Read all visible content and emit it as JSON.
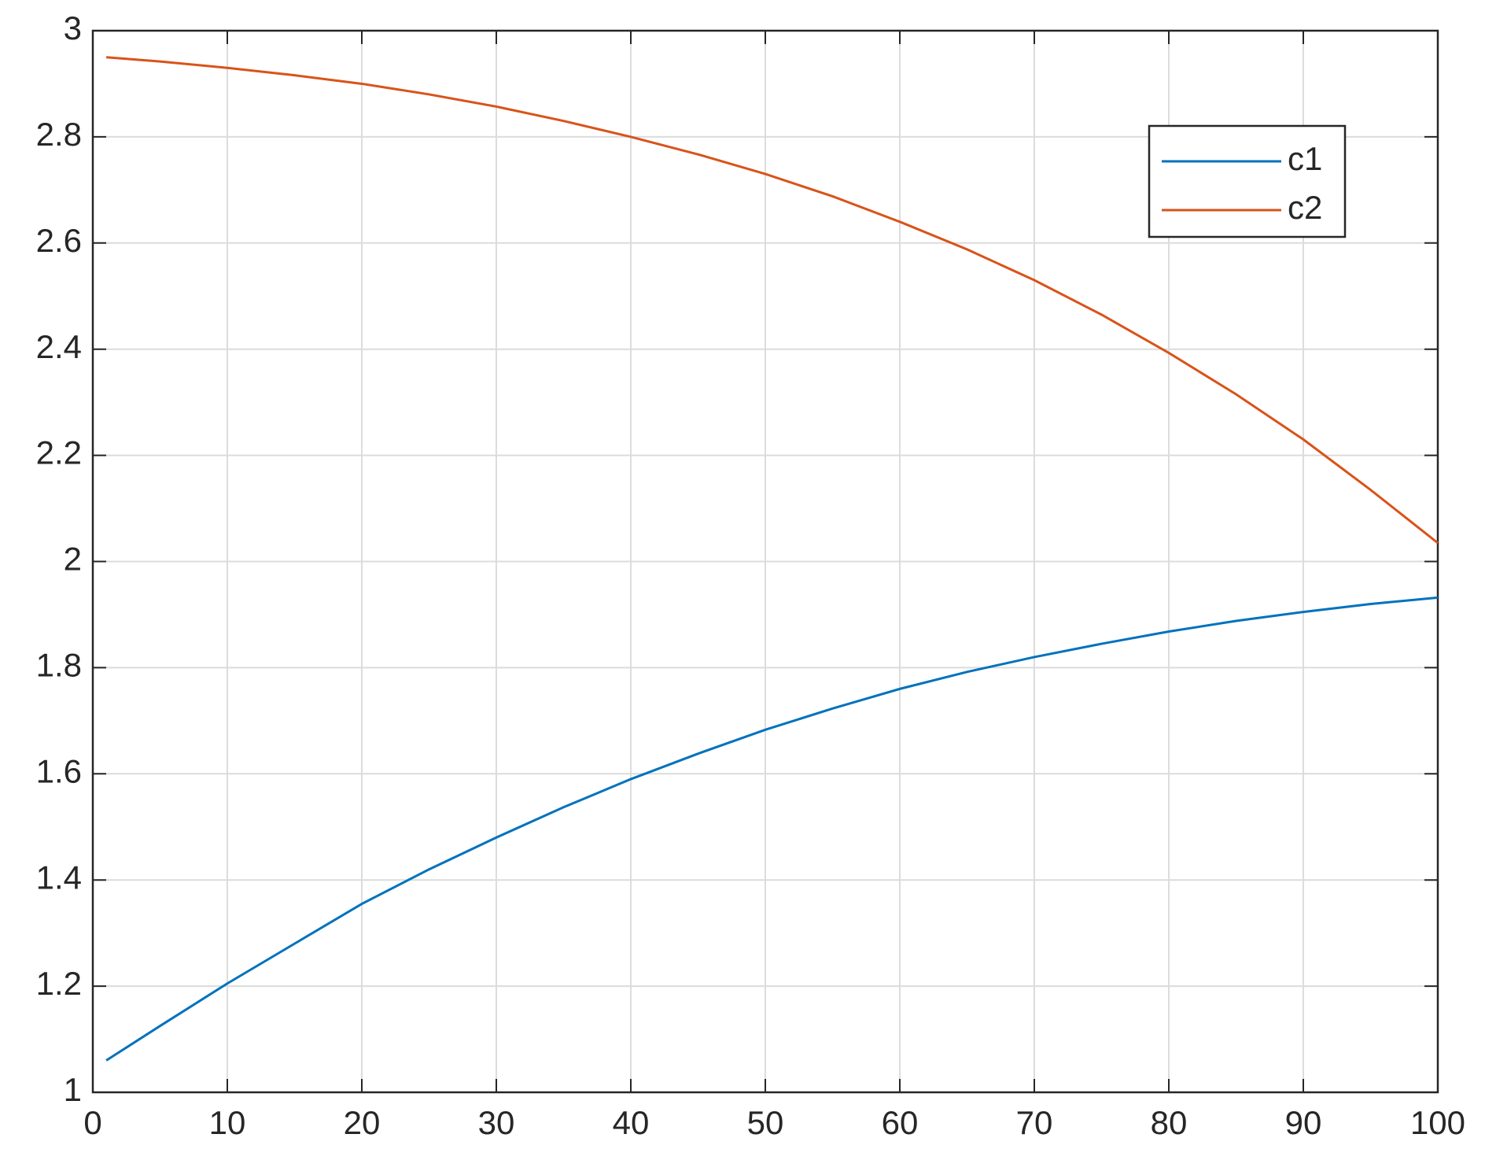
{
  "chart_data": {
    "type": "line",
    "x": [
      1,
      5,
      10,
      15,
      20,
      25,
      30,
      35,
      40,
      45,
      50,
      55,
      60,
      65,
      70,
      75,
      80,
      85,
      90,
      95,
      100
    ],
    "series": [
      {
        "name": "c1",
        "color": "#0072bd",
        "values": [
          1.06,
          1.125,
          1.205,
          1.28,
          1.355,
          1.42,
          1.48,
          1.537,
          1.59,
          1.638,
          1.683,
          1.723,
          1.76,
          1.792,
          1.82,
          1.845,
          1.868,
          1.888,
          1.905,
          1.92,
          1.932
        ]
      },
      {
        "name": "c2",
        "color": "#d95319",
        "values": [
          2.95,
          2.942,
          2.93,
          2.916,
          2.9,
          2.88,
          2.857,
          2.83,
          2.8,
          2.767,
          2.73,
          2.688,
          2.64,
          2.588,
          2.53,
          2.465,
          2.393,
          2.315,
          2.23,
          2.135,
          2.035
        ]
      }
    ],
    "xlim": [
      0,
      100
    ],
    "xticks": [
      0,
      10,
      20,
      30,
      40,
      50,
      60,
      70,
      80,
      90,
      100
    ],
    "ylim": [
      1,
      3
    ],
    "yticks": [
      1,
      1.2,
      1.4,
      1.6,
      1.8,
      2,
      2.2,
      2.4,
      2.6,
      2.8,
      3
    ],
    "grid": true,
    "legend": "northeast"
  }
}
